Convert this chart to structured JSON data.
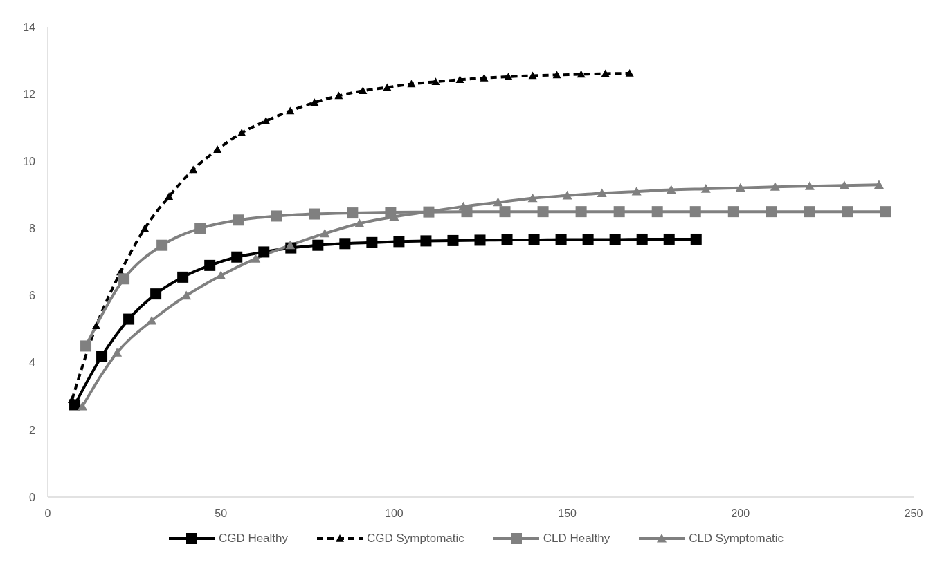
{
  "chart_data": {
    "type": "line",
    "xlim": [
      0,
      250
    ],
    "xticks": [
      0,
      50,
      100,
      150,
      200,
      250
    ],
    "ylim": [
      0,
      14
    ],
    "yticks": [
      0,
      2,
      4,
      6,
      8,
      10,
      12,
      14
    ],
    "grid": false,
    "legend": "bottom",
    "series": [
      {
        "name": "CGD Healthy",
        "color": "#000000",
        "marker": "square",
        "line_style": "solid",
        "x": [
          7.8,
          15.6,
          23.4,
          31.2,
          39,
          46.8,
          54.6,
          62.4,
          70.2,
          78,
          85.8,
          93.6,
          101.4,
          109.2,
          117,
          124.8,
          132.6,
          140.4,
          148.2,
          156,
          163.8,
          171.6,
          179.4,
          187.2
        ],
        "values": [
          2.75,
          4.2,
          5.3,
          6.05,
          6.55,
          6.9,
          7.15,
          7.3,
          7.42,
          7.5,
          7.55,
          7.58,
          7.61,
          7.63,
          7.64,
          7.65,
          7.66,
          7.66,
          7.67,
          7.67,
          7.67,
          7.68,
          7.68,
          7.68
        ]
      },
      {
        "name": "CGD Symptomatic",
        "color": "#000000",
        "marker": "triangle",
        "line_style": "dashed",
        "x": [
          7,
          14,
          21,
          28,
          35,
          42,
          49,
          56,
          63,
          70,
          77,
          84,
          91,
          98,
          105,
          112,
          119,
          126,
          133,
          140,
          147,
          154,
          161,
          168
        ],
        "values": [
          2.9,
          5.1,
          6.7,
          8.0,
          8.95,
          9.75,
          10.35,
          10.85,
          11.2,
          11.5,
          11.75,
          11.95,
          12.1,
          12.2,
          12.3,
          12.37,
          12.43,
          12.48,
          12.52,
          12.55,
          12.57,
          12.59,
          12.61,
          12.62
        ]
      },
      {
        "name": "CLD Healthy",
        "color": "#808080",
        "marker": "square",
        "line_style": "solid",
        "x": [
          11,
          22,
          33,
          44,
          55,
          66,
          77,
          88,
          99,
          110,
          121,
          132,
          143,
          154,
          165,
          176,
          187,
          198,
          209,
          220,
          231,
          242
        ],
        "values": [
          4.5,
          6.5,
          7.5,
          8.0,
          8.25,
          8.37,
          8.43,
          8.46,
          8.48,
          8.49,
          8.5,
          8.5,
          8.5,
          8.5,
          8.5,
          8.5,
          8.5,
          8.5,
          8.5,
          8.5,
          8.5,
          8.5
        ]
      },
      {
        "name": "CLD Symptomatic",
        "color": "#808080",
        "marker": "triangle",
        "line_style": "solid",
        "x": [
          10,
          20,
          30,
          40,
          50,
          60,
          70,
          80,
          90,
          100,
          110,
          120,
          130,
          140,
          150,
          160,
          170,
          180,
          190,
          200,
          210,
          220,
          230,
          240
        ],
        "values": [
          2.7,
          4.3,
          5.25,
          6.0,
          6.6,
          7.1,
          7.5,
          7.85,
          8.15,
          8.35,
          8.5,
          8.65,
          8.78,
          8.9,
          8.98,
          9.05,
          9.1,
          9.15,
          9.18,
          9.21,
          9.24,
          9.26,
          9.28,
          9.3
        ]
      }
    ]
  }
}
